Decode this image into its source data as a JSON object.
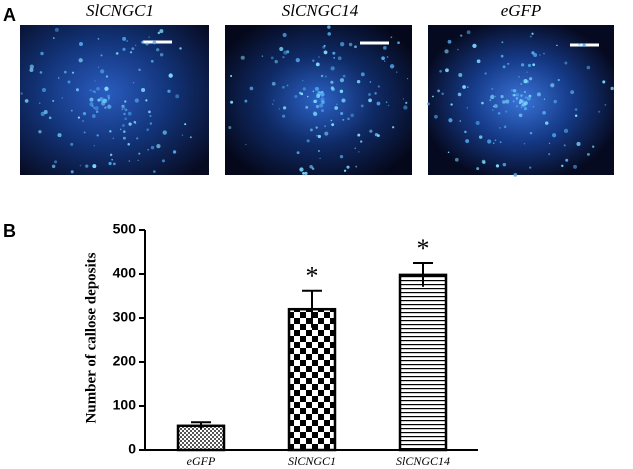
{
  "panel_labels": [
    "A",
    "B"
  ],
  "images": [
    {
      "title": "SlCNGC1"
    },
    {
      "title": "SlCNGC14"
    },
    {
      "title": "eGFP"
    }
  ],
  "chart_data": {
    "type": "bar",
    "ylabel": "Number of callose deposits",
    "categories": [
      "eGFP",
      "SlCNGC1",
      "SlCNGC14"
    ],
    "values": [
      55,
      320,
      398
    ],
    "errors": [
      8,
      42,
      27
    ],
    "annotations": [
      {
        "text": "*",
        "category": "SlCNGC1"
      },
      {
        "text": "*",
        "category": "SlCNGC14"
      }
    ],
    "color": "#000000",
    "ylim": [
      0,
      500
    ],
    "yticks": [
      0,
      100,
      200,
      300,
      400,
      500
    ],
    "grid": false
  }
}
